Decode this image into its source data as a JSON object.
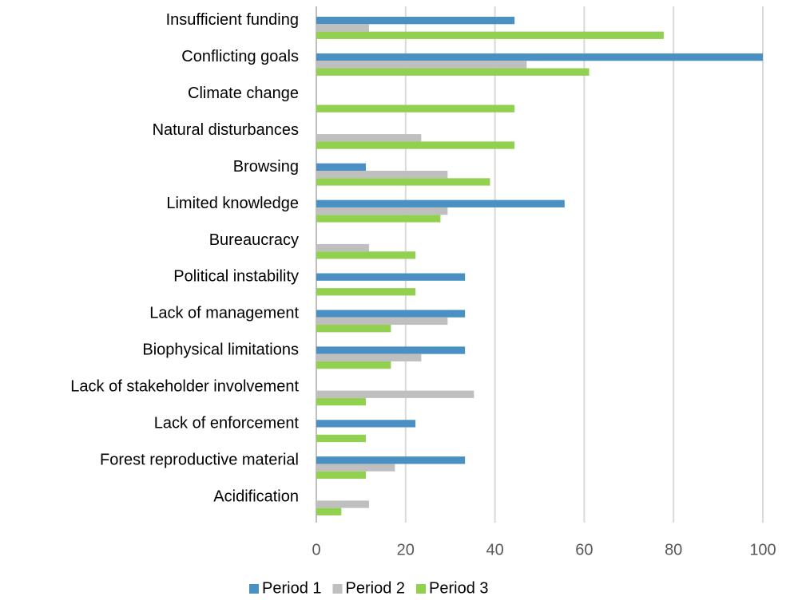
{
  "chart_data": {
    "type": "hbar",
    "categories": [
      "Insufficient funding",
      "Conflicting goals",
      "Climate change",
      "Natural disturbances",
      "Browsing",
      "Limited knowledge",
      "Bureaucracy",
      "Political instability",
      "Lack of management",
      "Biophysical limitations",
      "Lack of stakeholder involvement",
      "Lack of enforcement",
      "Forest reproductive material",
      "Acidification"
    ],
    "series": [
      {
        "name": "Period 1",
        "color": "#4a90c2",
        "values": [
          44.4,
          100,
          null,
          null,
          11.1,
          55.6,
          null,
          33.3,
          33.3,
          33.3,
          null,
          22.2,
          33.3,
          null
        ]
      },
      {
        "name": "Period 2",
        "color": "#bfbfbf",
        "values": [
          11.8,
          47.1,
          null,
          23.5,
          29.4,
          29.4,
          11.8,
          null,
          29.4,
          23.5,
          35.3,
          null,
          17.6,
          11.8
        ]
      },
      {
        "name": "Period 3",
        "color": "#92d050",
        "values": [
          77.8,
          61.1,
          44.4,
          44.4,
          38.9,
          27.8,
          22.2,
          22.2,
          16.7,
          16.7,
          11.1,
          11.1,
          11.1,
          5.6
        ]
      }
    ],
    "xlim": [
      0,
      100
    ],
    "xticks": [
      0,
      20,
      40,
      60,
      80,
      100
    ],
    "grid": true,
    "legend": "bottom"
  }
}
